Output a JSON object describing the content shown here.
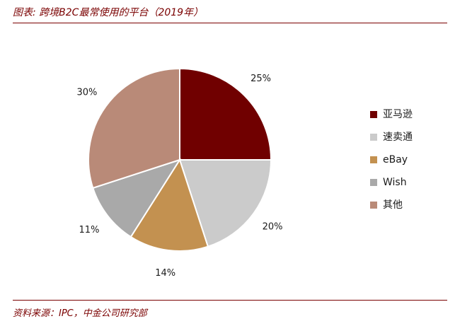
{
  "header": {
    "title": "图表: 跨境B2C最常使用的平台（2019年）"
  },
  "footer": {
    "source": "资料来源：IPC，中金公司研究部"
  },
  "chart_data": {
    "type": "pie",
    "title": "",
    "legend_position": "right",
    "categories": [
      "亚马逊",
      "速卖通",
      "eBay",
      "Wish",
      "其他"
    ],
    "values": [
      25,
      20,
      14,
      11,
      30
    ],
    "labels": [
      "25%",
      "20%",
      "14%",
      "11%",
      "30%"
    ],
    "colors": [
      "#700000",
      "#cbcbcb",
      "#c39150",
      "#a9a9a9",
      "#b98a78"
    ],
    "start_angle": "12 o'clock, clockwise"
  }
}
